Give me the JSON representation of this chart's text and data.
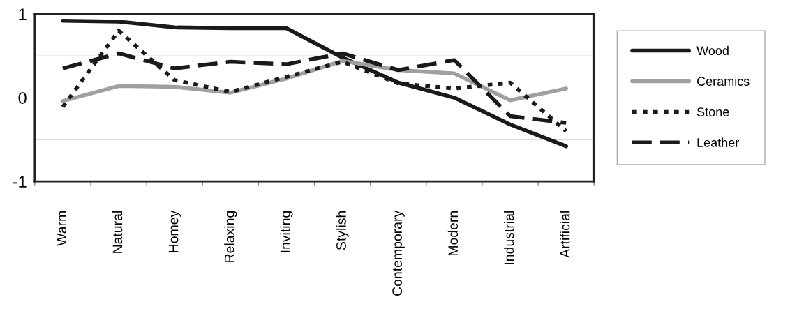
{
  "chart_data": {
    "type": "line",
    "categories": [
      "Warm",
      "Natural",
      "Homey",
      "Relaxing",
      "Inviting",
      "Stylish",
      "Contemporary",
      "Modern",
      "Industrial",
      "Artificial"
    ],
    "series": [
      {
        "name": "Wood",
        "color": "#1a1a1a",
        "line_style": "solid",
        "values": [
          0.92,
          0.91,
          0.84,
          0.83,
          0.83,
          0.48,
          0.18,
          0.0,
          -0.32,
          -0.58
        ]
      },
      {
        "name": "Ceramics",
        "color": "#a0a0a0",
        "line_style": "solid",
        "values": [
          -0.04,
          0.14,
          0.13,
          0.06,
          0.23,
          0.44,
          0.33,
          0.29,
          -0.03,
          0.11
        ]
      },
      {
        "name": "Stone",
        "color": "#1a1a1a",
        "line_style": "dotted",
        "values": [
          -0.11,
          0.8,
          0.21,
          0.07,
          0.25,
          0.43,
          0.17,
          0.11,
          0.18,
          -0.4
        ]
      },
      {
        "name": "Leather",
        "color": "#1a1a1a",
        "line_style": "dashed",
        "values": [
          0.35,
          0.53,
          0.35,
          0.43,
          0.4,
          0.53,
          0.33,
          0.45,
          -0.22,
          -0.3
        ]
      }
    ],
    "ylim": [
      -1,
      1
    ],
    "yticks": [
      -1,
      0,
      1
    ],
    "ref_lines": [
      {
        "axis": "y",
        "value": 0.5,
        "color": "#e0e0e0"
      },
      {
        "axis": "y",
        "value": -0.5,
        "color": "#d0d0d0"
      }
    ],
    "grid": false,
    "legend": "right",
    "marker": "none"
  }
}
